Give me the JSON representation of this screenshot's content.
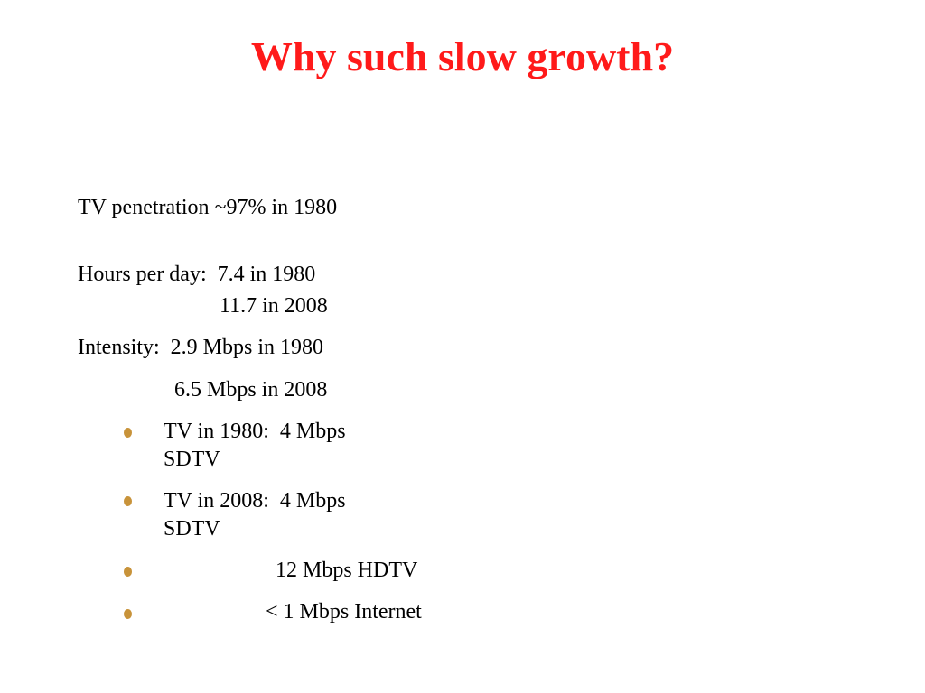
{
  "slide": {
    "title": "Why such slow growth?",
    "title_color": "#ff1a1a",
    "bullet_color": "#c8933a",
    "lines": {
      "tv_penetration": "TV penetration ~97% in 1980",
      "hours_1980": "Hours per day:  7.4 in 1980",
      "hours_2008": "11.7 in 2008",
      "intensity_1980": "Intensity:  2.9 Mbps in 1980",
      "intensity_2008": "6.5 Mbps in 2008"
    },
    "bullets": [
      {
        "line1": "TV in 1980:  4 Mbps",
        "line2": "SDTV"
      },
      {
        "line1": "TV in 2008:  4 Mbps",
        "line2": "SDTV"
      },
      {
        "line1": "12 Mbps HDTV"
      },
      {
        "line1": "< 1 Mbps Internet"
      }
    ]
  }
}
